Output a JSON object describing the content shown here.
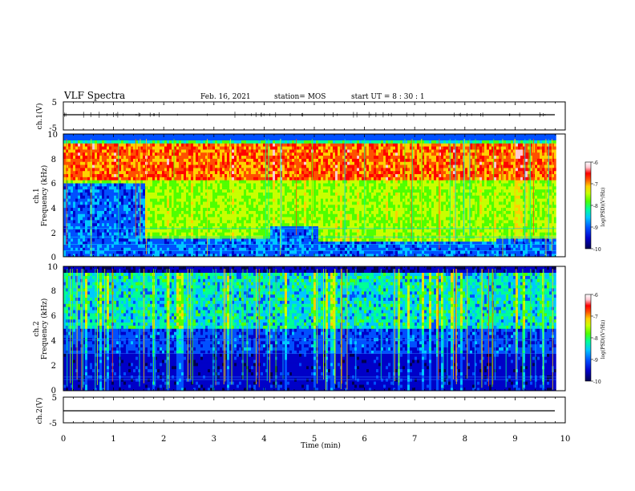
{
  "header": {
    "title": "VLF Spectra",
    "date": "Feb. 16, 2021",
    "station": "station= MOS",
    "start": "start  UT =  8 : 30 : 1"
  },
  "colors": {
    "bg": "#000000",
    "scale": [
      "#000050",
      "#0000c8",
      "#0050ff",
      "#00c8ff",
      "#00ff96",
      "#50ff00",
      "#c8ff00",
      "#ffd000",
      "#ff5000",
      "#ff0000",
      "#ffc8d2",
      "#ffffff"
    ]
  },
  "chart_data": [
    {
      "type": "line",
      "name": "ch1-waveform",
      "ylabel": "ch.1(V)",
      "ylim": [
        -5,
        5
      ],
      "ytick_labels": [
        "5",
        "-5"
      ],
      "xlim": [
        0,
        10
      ],
      "level": 0
    },
    {
      "type": "heatmap",
      "name": "ch1-spectrogram",
      "ylabel": "ch.1",
      "ylabel2": "Frequency (kHz)",
      "xlim": [
        0,
        10
      ],
      "ylim": [
        0,
        10
      ],
      "ytick_labels": [
        "0",
        "2",
        "4",
        "6",
        "8",
        "10"
      ],
      "data_xmax": 9.82,
      "colorbar": {
        "label": "log(PSD)(V²/Hz)",
        "ticks": [
          "-6",
          "-7",
          "-8",
          "-9",
          "-10"
        ],
        "range": [
          -10,
          -6
        ]
      },
      "baseline_bands": [
        {
          "t": [
            0,
            1.6
          ],
          "top_khz": 5.9
        },
        {
          "t": [
            1.6,
            4.1
          ],
          "top_khz": 1.4
        },
        {
          "t": [
            4.1,
            5.05
          ],
          "top_khz": 2.6
        },
        {
          "t": [
            5.05,
            8.6
          ],
          "top_khz": 1.2
        },
        {
          "t": [
            8.6,
            9.82
          ],
          "top_khz": 1.6
        }
      ]
    },
    {
      "type": "heatmap",
      "name": "ch2-spectrogram",
      "ylabel": "ch.2",
      "ylabel2": "Frequency (kHz)",
      "xlim": [
        0,
        10
      ],
      "ylim": [
        0,
        10
      ],
      "ytick_labels": [
        "0",
        "2",
        "4",
        "6",
        "8",
        "10"
      ],
      "data_xmax": 9.82,
      "colorbar": {
        "label": "log(PSD)(V²/Hz)",
        "ticks": [
          "-6",
          "-7",
          "-8",
          "-9",
          "-10"
        ],
        "range": [
          -10,
          -6
        ]
      }
    },
    {
      "type": "line",
      "name": "ch2-waveform",
      "ylabel": "ch.2(V)",
      "ylim": [
        -5,
        5
      ],
      "ytick_labels": [
        "5",
        "-5"
      ],
      "xlim": [
        0,
        10
      ],
      "level": 0,
      "xlabel": "Time  (min)",
      "xtick_labels": [
        "0",
        "1",
        "2",
        "3",
        "4",
        "5",
        "6",
        "7",
        "8",
        "9",
        "10"
      ]
    }
  ]
}
